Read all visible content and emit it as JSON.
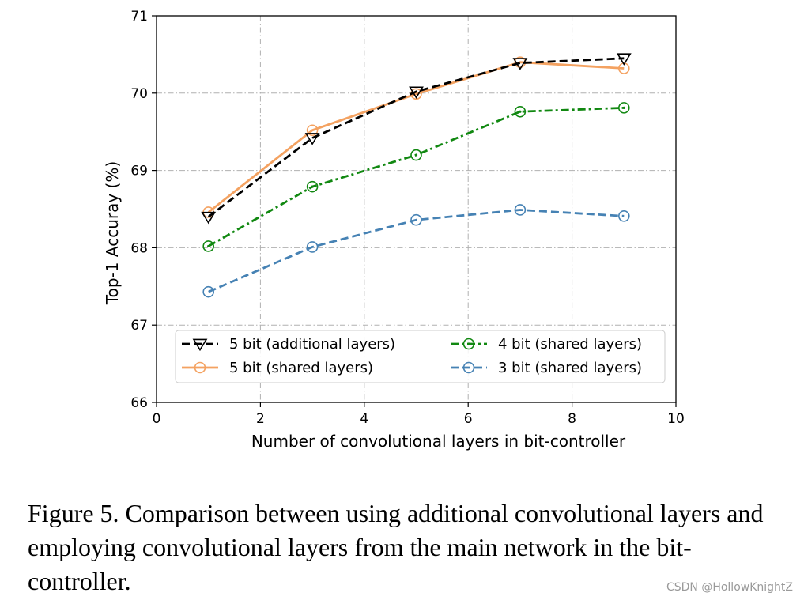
{
  "chart_data": {
    "type": "line",
    "xlabel": "Number of convolutional layers in bit-controller",
    "ylabel": "Top-1 Accuray (%)",
    "xlim": [
      0,
      10
    ],
    "ylim": [
      66,
      71
    ],
    "xticks": [
      0,
      2,
      4,
      6,
      8,
      10
    ],
    "yticks": [
      66,
      67,
      68,
      69,
      70,
      71
    ],
    "grid": true,
    "legend_position": "lower-center",
    "series": [
      {
        "name": "5 bit (additional layers)",
        "x": [
          1,
          3,
          5,
          7,
          9
        ],
        "values": [
          68.4,
          69.42,
          70.02,
          70.39,
          70.45
        ],
        "color": "#000000",
        "style": "dashed",
        "marker": "triangle-down"
      },
      {
        "name": "5 bit (shared layers)",
        "x": [
          1,
          3,
          5,
          7,
          9
        ],
        "values": [
          68.46,
          69.52,
          69.99,
          70.4,
          70.32
        ],
        "color": "#f4a261",
        "style": "solid",
        "marker": "circle"
      },
      {
        "name": "4 bit (shared layers)",
        "x": [
          1,
          3,
          5,
          7,
          9
        ],
        "values": [
          68.02,
          68.79,
          69.2,
          69.76,
          69.81
        ],
        "color": "#118811",
        "style": "dashdot",
        "marker": "circle-dot"
      },
      {
        "name": "3 bit (shared layers)",
        "x": [
          1,
          3,
          5,
          7,
          9
        ],
        "values": [
          67.43,
          68.01,
          68.36,
          68.49,
          68.41
        ],
        "color": "#4682b4",
        "style": "dashed",
        "marker": "circle"
      }
    ]
  },
  "caption": "Figure 5. Comparison between using additional convolutional layers and employing convolutional layers from the main network in the bit-controller.",
  "watermark": "CSDN @HollowKnightZ"
}
